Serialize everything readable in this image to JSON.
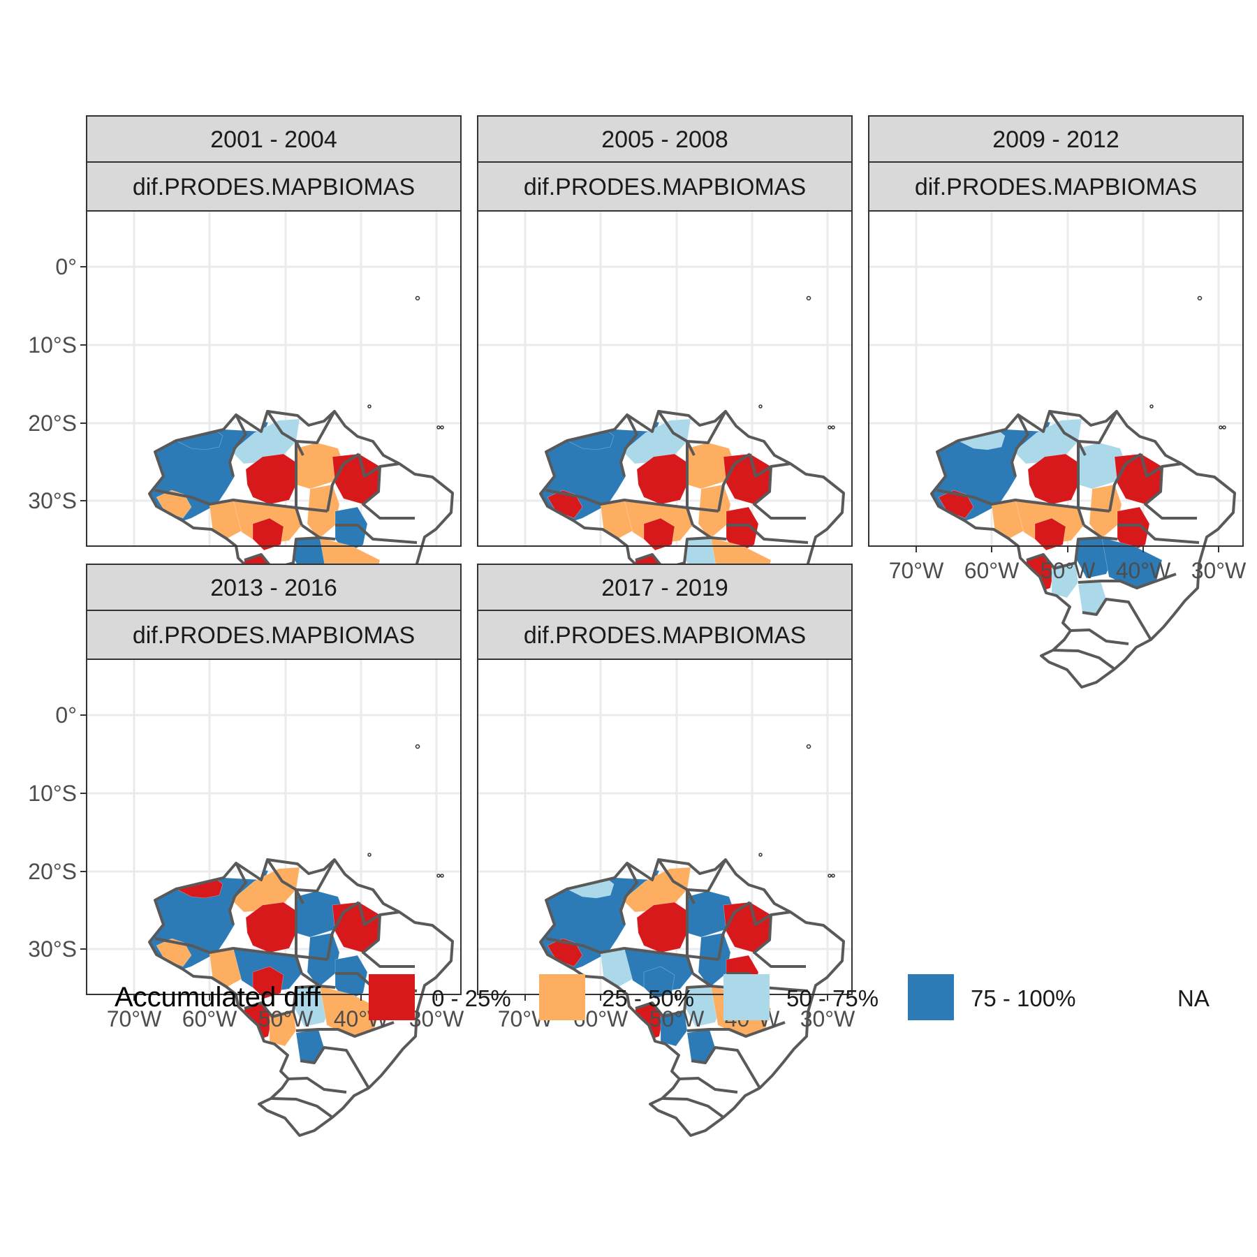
{
  "facet_label": "dif.PRODES.MAPBIOMAS",
  "panels": [
    {
      "period": "2001 - 2004"
    },
    {
      "period": "2005 - 2008"
    },
    {
      "period": "2009 - 2012"
    },
    {
      "period": "2013 - 2016"
    },
    {
      "period": "2017 - 2019"
    }
  ],
  "axes": {
    "lat_labels": [
      "0°",
      "10°S",
      "20°S",
      "30°S"
    ],
    "lon_labels": [
      "70°W",
      "60°W",
      "50°W",
      "40°W",
      "30°W"
    ]
  },
  "legend": {
    "title": "Accumulated diff",
    "items": [
      {
        "label": "0 - 25%",
        "color": "#d7191c"
      },
      {
        "label": "25 - 50%",
        "color": "#fdae61"
      },
      {
        "label": "50 - 75%",
        "color": "#abd9e9"
      },
      {
        "label": "75 - 100%",
        "color": "#2c7bb6"
      },
      {
        "label": "NA",
        "color": "#ffffff"
      }
    ]
  },
  "colors": {
    "strip_fill": "#d9d9d9",
    "state_outline": "#595959",
    "grid": "#ebebeb",
    "panel_border": "#333333"
  }
}
